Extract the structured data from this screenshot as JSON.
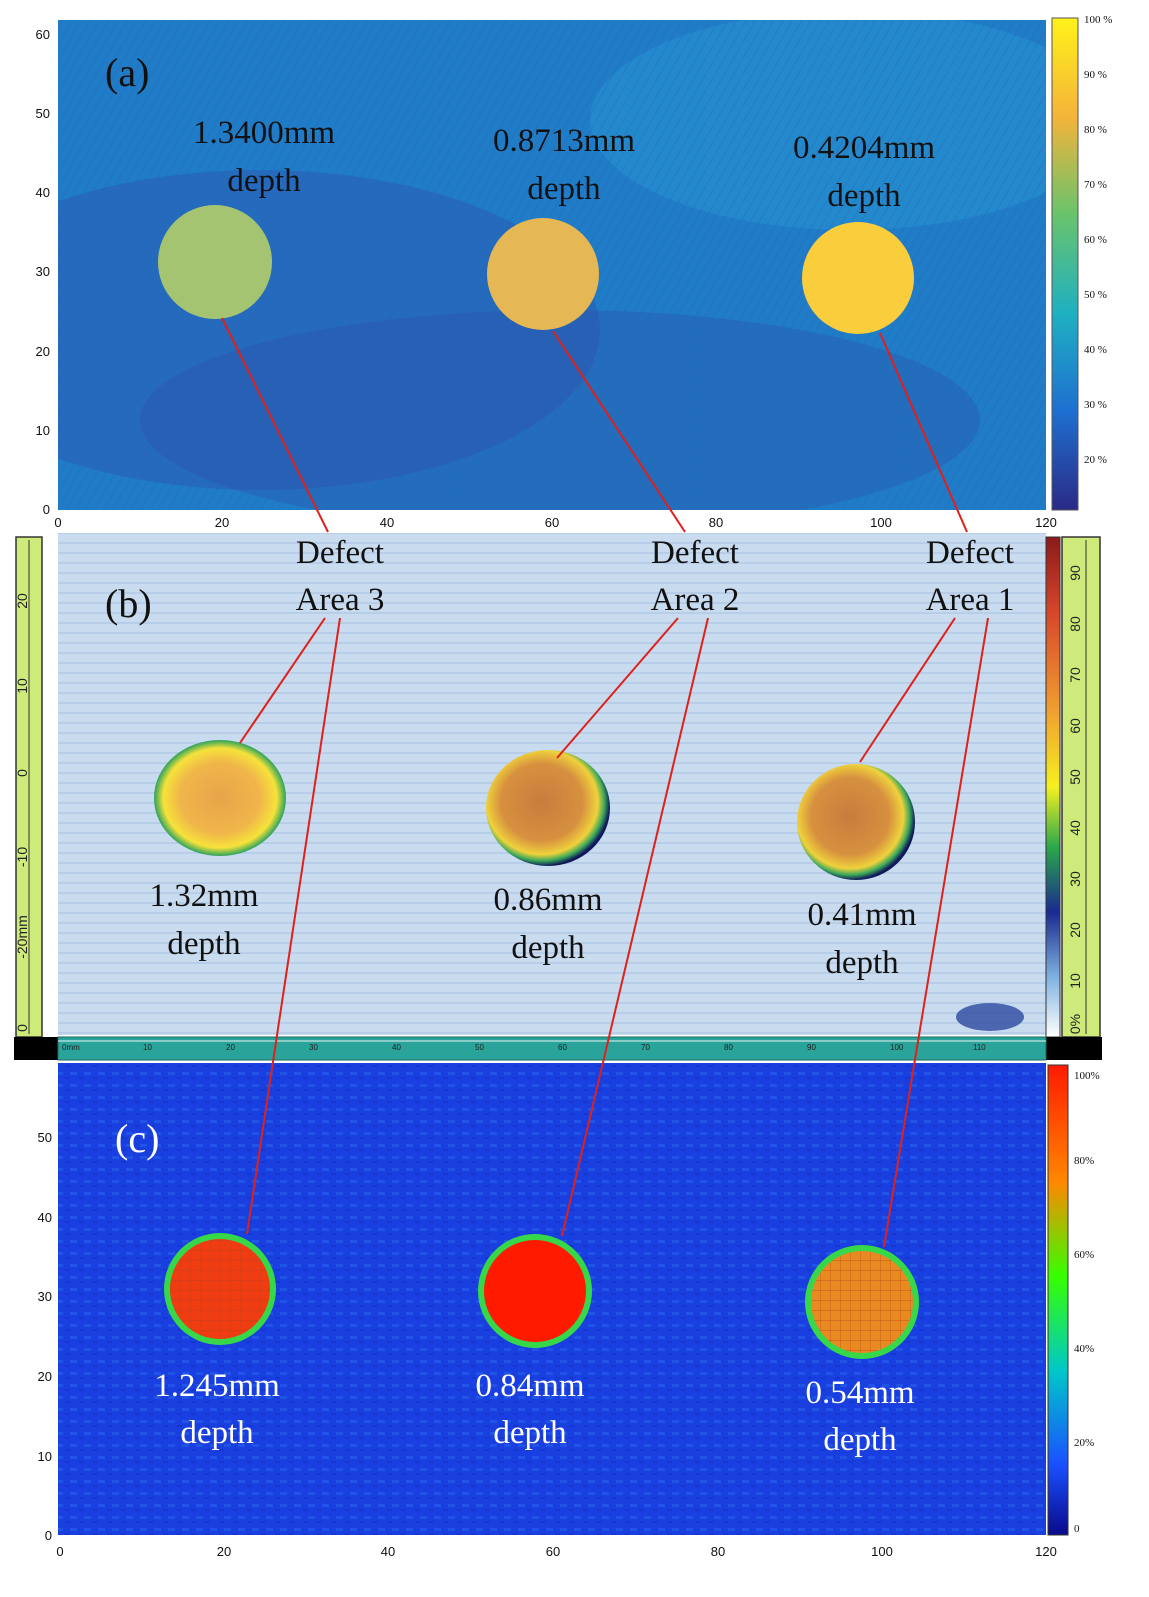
{
  "panel_a": {
    "label": "(a)",
    "x_ticks": [
      "0",
      "20",
      "40",
      "60",
      "80",
      "100",
      "120"
    ],
    "y_ticks": [
      "0",
      "10",
      "20",
      "30",
      "40",
      "50",
      "60"
    ],
    "colorbar_ticks": [
      "100 %",
      "90 %",
      "80 %",
      "70 %",
      "60 %",
      "50 %",
      "40 %",
      "30 %",
      "20 %"
    ],
    "defects": [
      {
        "value": "1.3400mm",
        "word": "depth"
      },
      {
        "value": "0.8713mm",
        "word": "depth"
      },
      {
        "value": "0.4204mm",
        "word": "depth"
      }
    ]
  },
  "panel_b": {
    "label": "(b)",
    "area_labels": [
      {
        "l1": "Defect",
        "l2": "Area 3"
      },
      {
        "l1": "Defect",
        "l2": "Area 2"
      },
      {
        "l1": "Defect",
        "l2": "Area 1"
      }
    ],
    "left_ruler_ticks": [
      "20",
      "10",
      "0",
      "-10",
      "-20mm",
      "0"
    ],
    "right_ruler_ticks": [
      "90",
      "80",
      "70",
      "60",
      "50",
      "40",
      "30",
      "20",
      "10",
      "0%"
    ],
    "bottom_ruler_ticks": [
      "0mm",
      "10",
      "20",
      "30",
      "40",
      "50",
      "60",
      "70",
      "80",
      "90",
      "100",
      "110"
    ],
    "defects": [
      {
        "value": "1.32mm",
        "word": "depth"
      },
      {
        "value": "0.86mm",
        "word": "depth"
      },
      {
        "value": "0.41mm",
        "word": "depth"
      }
    ]
  },
  "panel_c": {
    "label": "(c)",
    "x_ticks": [
      "0",
      "20",
      "40",
      "60",
      "80",
      "100",
      "120"
    ],
    "y_ticks": [
      "0",
      "10",
      "20",
      "30",
      "40",
      "50"
    ],
    "colorbar_ticks": [
      "100%",
      "80%",
      "60%",
      "40%",
      "20%",
      "0"
    ],
    "defects": [
      {
        "value": "1.245mm",
        "word": "depth"
      },
      {
        "value": "0.84mm",
        "word": "depth"
      },
      {
        "value": "0.54mm",
        "word": "depth"
      }
    ]
  },
  "colors": {
    "a_bg": "#1f7dc8",
    "b_bg": "#c9dbee",
    "c_bg": "#1a3fe0",
    "connector": "#e0201a"
  }
}
